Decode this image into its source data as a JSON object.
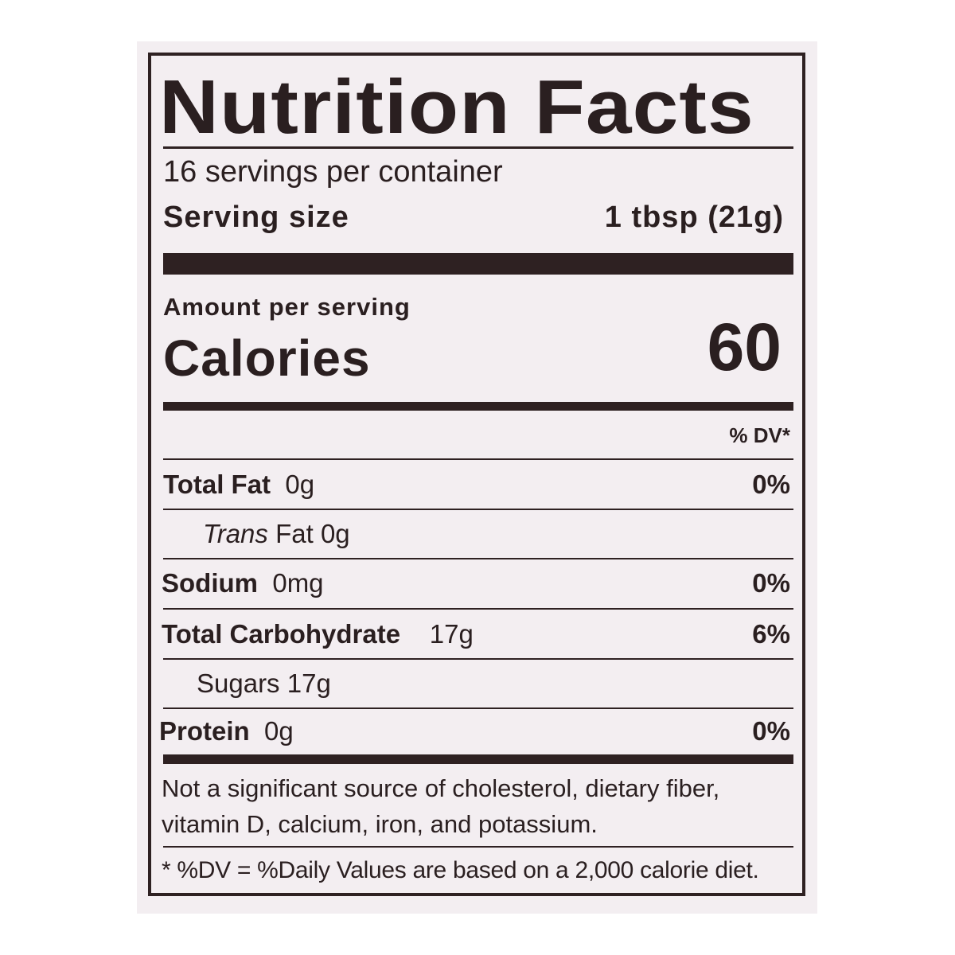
{
  "label": {
    "title": "Nutrition Facts",
    "servings_per_container": "16 servings per container",
    "serving_size_label": "Serving size",
    "serving_size_value": "1 tbsp (21g)",
    "amount_per_serving": "Amount per serving",
    "calories_label": "Calories",
    "calories_value": "60",
    "dv_header": "% DV*",
    "nutrients": [
      {
        "name": "Total Fat",
        "amount": "0g",
        "dv": "0%"
      },
      {
        "name_italic": "Trans",
        "name": "Fat",
        "amount": "0g"
      },
      {
        "name": "Sodium",
        "amount": "0mg",
        "dv": "0%"
      },
      {
        "name": "Total Carbohydrate",
        "amount": "17g",
        "dv": "6%"
      },
      {
        "name": "Sugars",
        "amount": "17g"
      },
      {
        "name": "Protein",
        "amount": "0g",
        "dv": "0%"
      }
    ],
    "footnote_1_line1": "Not a significant source of cholesterol, dietary fiber,",
    "footnote_1_line2": "vitamin D, calcium, iron, and potassium.",
    "footnote_2": "* %DV = %Daily Values are based on a 2,000 calorie diet."
  },
  "colors": {
    "ink": "#2e2122",
    "background": "#f3eef1"
  }
}
